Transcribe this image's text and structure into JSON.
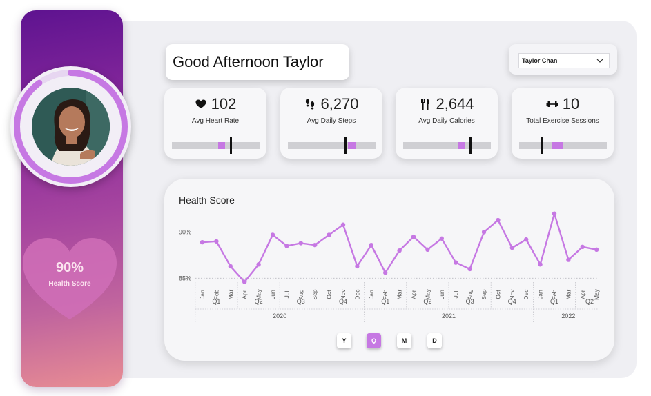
{
  "greeting": "Good Afternoon Taylor",
  "user_select": {
    "value": "Taylor Chan"
  },
  "profile": {
    "health_score_value": "90%",
    "health_score_label": "Health Score",
    "ring_progress": 0.9
  },
  "kpis": [
    {
      "value": "102",
      "label": "Avg Heart Rate",
      "icon": "heart-icon"
    },
    {
      "value": "6,270",
      "label": "Avg Daily Steps",
      "icon": "footprints-icon"
    },
    {
      "value": "2,644",
      "label": "Avg Daily Calories",
      "icon": "fork-knife-icon"
    },
    {
      "value": "10",
      "label": "Total Exercise Sessions",
      "icon": "dumbbell-icon"
    }
  ],
  "granularity_buttons": [
    {
      "label": "Y",
      "active": false
    },
    {
      "label": "Q",
      "active": true
    },
    {
      "label": "M",
      "active": false
    },
    {
      "label": "D",
      "active": false
    }
  ],
  "colors": {
    "accent": "#c678e3",
    "sidebar_top": "#5e1390",
    "sidebar_bottom": "#e88d93"
  },
  "chart_data": {
    "type": "line",
    "title": "Health Score",
    "xlabel": "",
    "ylabel": "",
    "y_ticks": [
      {
        "value": 90,
        "label": "90%"
      },
      {
        "value": 85,
        "label": "85%"
      }
    ],
    "x": [
      "Jan",
      "Feb",
      "Mar",
      "Apr",
      "May",
      "Jun",
      "Jul",
      "Aug",
      "Sep",
      "Oct",
      "Nov",
      "Dec",
      "Jan",
      "Feb",
      "Mar",
      "Apr",
      "May",
      "Jun",
      "Jul",
      "Aug",
      "Sep",
      "Oct",
      "Nov",
      "Dec",
      "Jan",
      "Feb",
      "Mar",
      "Apr",
      "May"
    ],
    "quarters": [
      {
        "label": "Q1",
        "start": 0,
        "end": 2
      },
      {
        "label": "Q2",
        "start": 3,
        "end": 5
      },
      {
        "label": "Q3",
        "start": 6,
        "end": 8
      },
      {
        "label": "Q4",
        "start": 9,
        "end": 11
      },
      {
        "label": "Q1",
        "start": 12,
        "end": 14
      },
      {
        "label": "Q2",
        "start": 15,
        "end": 17
      },
      {
        "label": "Q3",
        "start": 18,
        "end": 20
      },
      {
        "label": "Q4",
        "start": 21,
        "end": 23
      },
      {
        "label": "Q1",
        "start": 24,
        "end": 26
      },
      {
        "label": "Q2",
        "start": 27,
        "end": 28
      }
    ],
    "years": [
      {
        "label": "2020",
        "start": 0,
        "end": 11
      },
      {
        "label": "2021",
        "start": 12,
        "end": 23
      },
      {
        "label": "2022",
        "start": 24,
        "end": 28
      }
    ],
    "series": [
      {
        "values": [
          88.9,
          89.0,
          86.3,
          84.6,
          86.5,
          89.7,
          88.5,
          88.8,
          88.6,
          89.7,
          90.8,
          86.3,
          88.6,
          85.6,
          88.0,
          89.5,
          88.1,
          89.3,
          86.7,
          86.0,
          90.0,
          91.3,
          88.3,
          89.2,
          86.5,
          92.0,
          87.0,
          88.4,
          88.1
        ]
      }
    ],
    "ylim": [
      84.2,
      92.5
    ],
    "grid": true
  }
}
